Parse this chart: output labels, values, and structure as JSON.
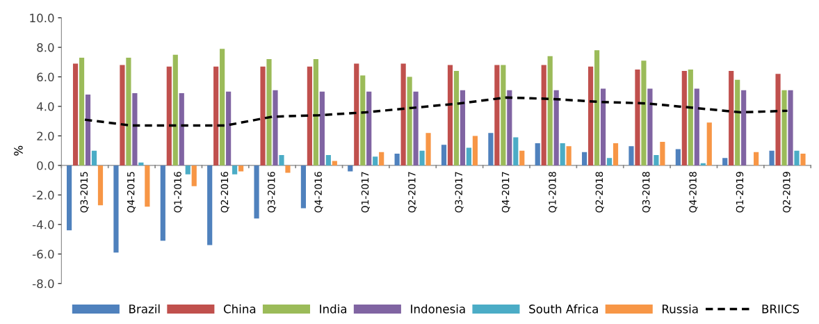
{
  "chart_data": {
    "type": "bar",
    "ylabel": "%",
    "categories": [
      "Q3-2015",
      "Q4-2015",
      "Q1-2016",
      "Q2-2016",
      "Q3-2016",
      "Q4-2016",
      "Q1-2017",
      "Q2-2017",
      "Q3-2017",
      "Q4-2017",
      "Q1-2018",
      "Q2-2018",
      "Q3-2018",
      "Q4-2018",
      "Q1-2019",
      "Q2-2019"
    ],
    "series": [
      {
        "name": "Brazil",
        "color": "#4f81bd",
        "values": [
          -4.4,
          -5.9,
          -5.1,
          -5.4,
          -3.6,
          -2.9,
          -0.4,
          0.8,
          1.4,
          2.2,
          1.5,
          0.9,
          1.3,
          1.1,
          0.5,
          1.0
        ]
      },
      {
        "name": "China",
        "color": "#c0504d",
        "values": [
          6.9,
          6.8,
          6.7,
          6.7,
          6.7,
          6.7,
          6.9,
          6.9,
          6.8,
          6.8,
          6.8,
          6.7,
          6.5,
          6.4,
          6.4,
          6.2
        ]
      },
      {
        "name": "India",
        "color": "#9bbb59",
        "values": [
          7.3,
          7.3,
          7.5,
          7.9,
          7.2,
          7.2,
          6.1,
          6.0,
          6.4,
          6.8,
          7.4,
          7.8,
          7.1,
          6.5,
          5.8,
          5.1
        ]
      },
      {
        "name": "Indonesia",
        "color": "#8064a2",
        "values": [
          4.8,
          4.9,
          4.9,
          5.0,
          5.1,
          5.0,
          5.0,
          5.0,
          5.1,
          5.1,
          5.1,
          5.2,
          5.2,
          5.2,
          5.1,
          5.1
        ]
      },
      {
        "name": "South Africa",
        "color": "#4bacc6",
        "values": [
          1.0,
          0.2,
          -0.6,
          -0.6,
          0.7,
          0.7,
          0.6,
          1.0,
          1.2,
          1.9,
          1.5,
          0.5,
          0.7,
          0.15,
          0.0,
          1.0
        ]
      },
      {
        "name": "Russia",
        "color": "#f79646",
        "values": [
          -2.7,
          -2.8,
          -1.4,
          -0.4,
          -0.5,
          0.3,
          0.9,
          2.2,
          2.0,
          1.0,
          1.3,
          1.5,
          1.6,
          2.9,
          0.9,
          0.8
        ]
      },
      {
        "name": "BRIICS",
        "type": "line",
        "color": "#000000",
        "line_style": "dashed",
        "values": [
          3.1,
          2.7,
          2.7,
          2.7,
          3.3,
          3.4,
          3.6,
          3.9,
          4.2,
          4.6,
          4.5,
          4.3,
          4.2,
          3.9,
          3.6,
          3.7
        ]
      }
    ],
    "ylim": [
      -8.0,
      10.0
    ],
    "yticks": [
      {
        "value": -8,
        "label": "-8.0"
      },
      {
        "value": -6,
        "label": "-6.0"
      },
      {
        "value": -4,
        "label": "-4.0"
      },
      {
        "value": -2,
        "label": "-2.0"
      },
      {
        "value": 0,
        "label": "0.0"
      },
      {
        "value": 2,
        "label": "2.0"
      },
      {
        "value": 4,
        "label": "4.0"
      },
      {
        "value": 6,
        "label": "6.0"
      },
      {
        "value": 8,
        "label": "8.0"
      },
      {
        "value": 10,
        "label": "10.0"
      }
    ],
    "legend": "bottom",
    "grid": false,
    "marker": "none"
  }
}
